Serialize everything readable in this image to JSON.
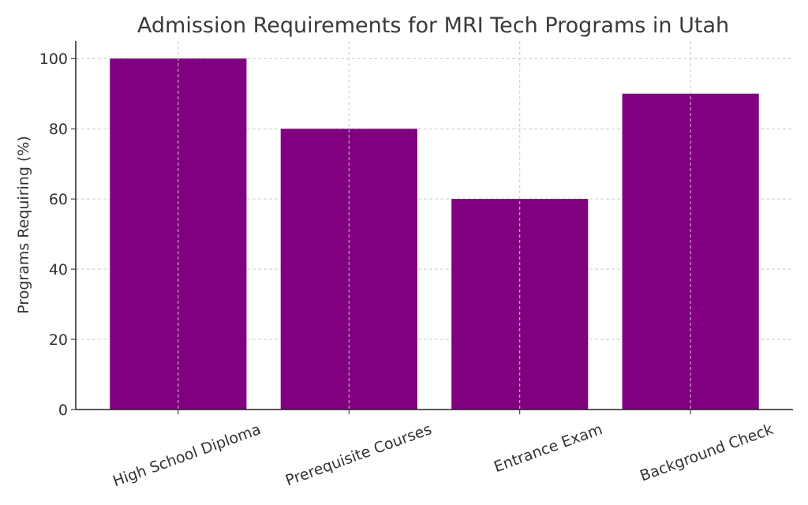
{
  "chart_data": {
    "type": "bar",
    "title": "Admission Requirements for MRI Tech Programs in Utah",
    "xlabel": "",
    "ylabel": "Programs Requiring (%)",
    "categories": [
      "High School Diploma",
      "Prerequisite Courses",
      "Entrance Exam",
      "Background Check"
    ],
    "values": [
      100,
      80,
      60,
      90
    ],
    "ylim": [
      0,
      105
    ],
    "yticks": [
      0,
      20,
      40,
      60,
      80,
      100
    ],
    "grid": true,
    "bar_color": "#800080",
    "xtick_rotation": "rotated"
  }
}
